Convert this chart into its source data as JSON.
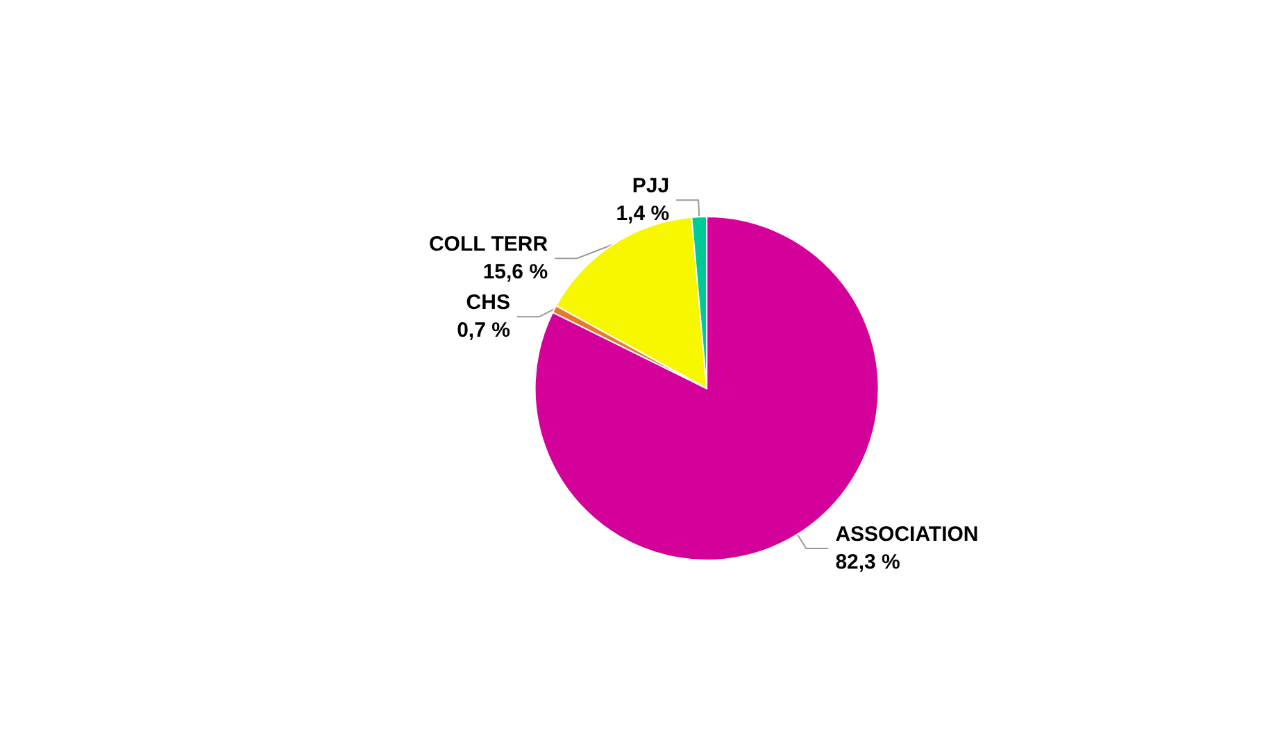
{
  "chart_data": {
    "type": "pie",
    "categories": [
      "ASSOCIATION",
      "CHS",
      "COLL TERR",
      "PJJ"
    ],
    "values": [
      82.3,
      0.7,
      15.6,
      1.4
    ],
    "colors": [
      "#d4009a",
      "#e8792a",
      "#f7f700",
      "#00c896"
    ],
    "value_labels": [
      "82,3 %",
      "0,7 %",
      "15,6 %",
      "1,4 %"
    ]
  }
}
